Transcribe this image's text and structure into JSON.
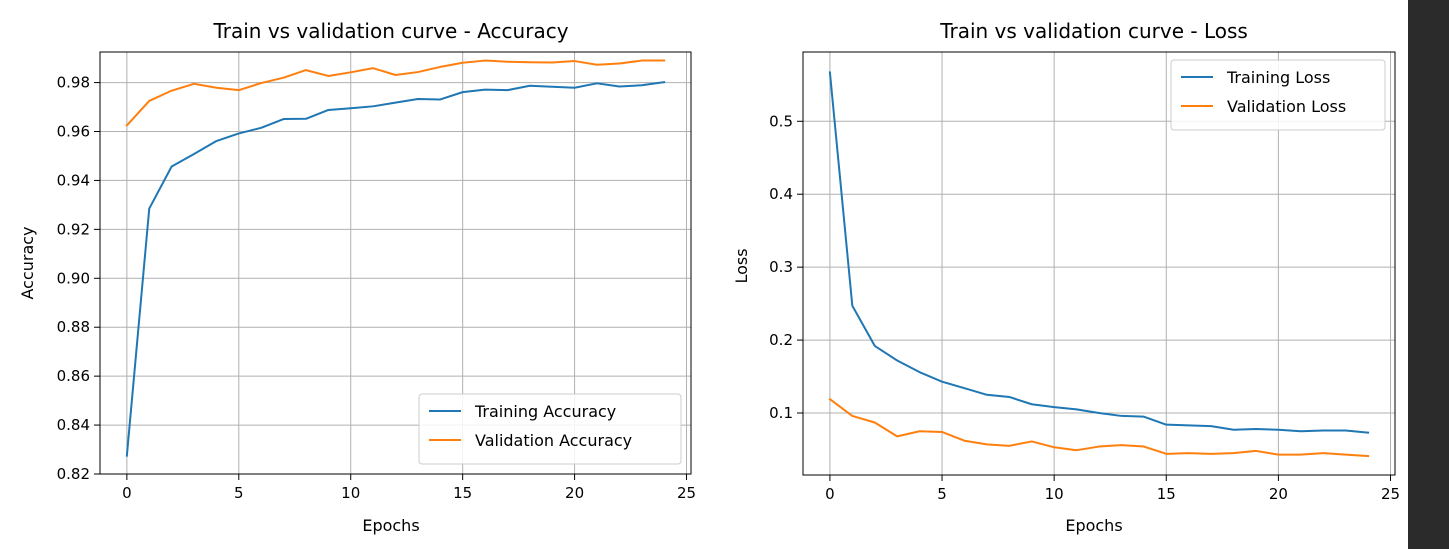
{
  "chart_data": [
    {
      "type": "line",
      "title": "Train vs validation curve - Accuracy",
      "xlabel": "Epochs",
      "ylabel": "Accuracy",
      "xlim": [
        -1.2,
        25.2
      ],
      "ylim": [
        0.82,
        0.9925
      ],
      "xticks": [
        0,
        5,
        10,
        15,
        20,
        25
      ],
      "yticks": [
        0.82,
        0.84,
        0.86,
        0.88,
        0.9,
        0.92,
        0.94,
        0.96,
        0.98
      ],
      "ytick_decimals": 2,
      "grid": true,
      "legend": "lower-right",
      "x": [
        0,
        1,
        2,
        3,
        4,
        5,
        6,
        7,
        8,
        9,
        10,
        11,
        12,
        13,
        14,
        15,
        16,
        17,
        18,
        19,
        20,
        21,
        22,
        23,
        24
      ],
      "series": [
        {
          "name": "Training Accuracy",
          "color": "#1f77b4",
          "values": [
            0.8275,
            0.9285,
            0.9457,
            0.9508,
            0.9561,
            0.9592,
            0.9615,
            0.9651,
            0.9652,
            0.9688,
            0.9695,
            0.9703,
            0.9718,
            0.9733,
            0.9731,
            0.9761,
            0.9771,
            0.9769,
            0.9787,
            0.9783,
            0.9779,
            0.9797,
            0.9784,
            0.9789,
            0.9802
          ]
        },
        {
          "name": "Validation Accuracy",
          "color": "#ff7f0e",
          "values": [
            0.9625,
            0.9725,
            0.9767,
            0.9795,
            0.9779,
            0.9769,
            0.9798,
            0.982,
            0.9851,
            0.9827,
            0.9842,
            0.9859,
            0.9831,
            0.9843,
            0.9864,
            0.9881,
            0.989,
            0.9885,
            0.9883,
            0.9882,
            0.9888,
            0.9873,
            0.9878,
            0.989,
            0.989
          ]
        }
      ]
    },
    {
      "type": "line",
      "title": "Train vs validation curve - Loss",
      "xlabel": "Epochs",
      "ylabel": "Loss",
      "xlim": [
        -1.2,
        25.2
      ],
      "ylim": [
        0.015,
        0.595
      ],
      "xticks": [
        0,
        5,
        10,
        15,
        20,
        25
      ],
      "yticks": [
        0.1,
        0.2,
        0.3,
        0.4,
        0.5
      ],
      "ytick_decimals": 1,
      "grid": true,
      "legend": "upper-right",
      "x": [
        0,
        1,
        2,
        3,
        4,
        5,
        6,
        7,
        8,
        9,
        10,
        11,
        12,
        13,
        14,
        15,
        16,
        17,
        18,
        19,
        20,
        21,
        22,
        23,
        24
      ],
      "series": [
        {
          "name": "Training Loss",
          "color": "#1f77b4",
          "values": [
            0.567,
            0.247,
            0.192,
            0.172,
            0.156,
            0.143,
            0.134,
            0.125,
            0.122,
            0.112,
            0.108,
            0.105,
            0.1,
            0.096,
            0.095,
            0.084,
            0.083,
            0.082,
            0.077,
            0.078,
            0.077,
            0.075,
            0.076,
            0.076,
            0.073
          ]
        },
        {
          "name": "Validation Loss",
          "color": "#ff7f0e",
          "values": [
            0.119,
            0.096,
            0.087,
            0.068,
            0.075,
            0.074,
            0.062,
            0.057,
            0.055,
            0.061,
            0.053,
            0.049,
            0.054,
            0.056,
            0.054,
            0.044,
            0.045,
            0.044,
            0.045,
            0.048,
            0.043,
            0.043,
            0.045,
            0.043,
            0.041
          ]
        }
      ]
    }
  ]
}
